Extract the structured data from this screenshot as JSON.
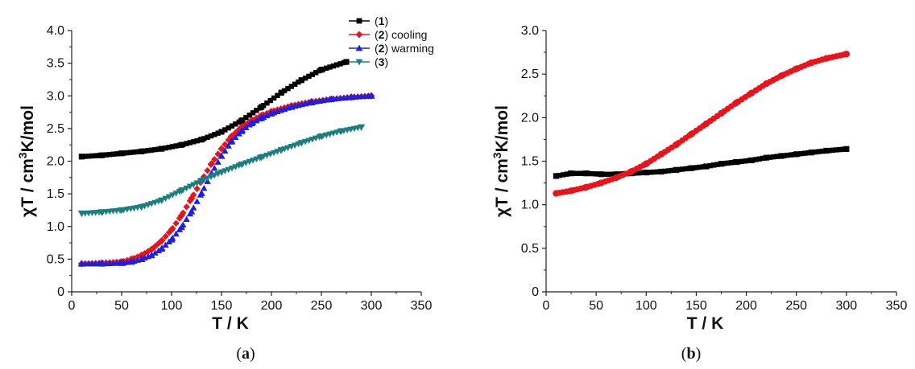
{
  "panel_labels": [
    {
      "open": "(",
      "letter": "a",
      "close": ")"
    },
    {
      "open": "(",
      "letter": "b",
      "close": ")"
    }
  ],
  "chart_data": [
    {
      "type": "scatter",
      "title": "",
      "xlabel": "T / K",
      "ylabel_prefix": "χT / cm",
      "ylabel_sup": "3",
      "ylabel_suffix": "K/mol",
      "xlim": [
        0,
        350
      ],
      "ylim": [
        0,
        4.0
      ],
      "xticks": [
        "0",
        "50",
        "100",
        "150",
        "200",
        "250",
        "300",
        "350"
      ],
      "yticks": [
        "0",
        "0.5",
        "1.0",
        "1.5",
        "2.0",
        "2.5",
        "3.0",
        "3.5",
        "4.0"
      ],
      "legend_position": "top-right",
      "grid": false,
      "series": [
        {
          "name_num": "1",
          "name_text": "",
          "color": "#000000",
          "marker": "square",
          "x": [
            10,
            30,
            50,
            70,
            90,
            110,
            130,
            150,
            170,
            190,
            210,
            230,
            250,
            275
          ],
          "y": [
            2.07,
            2.09,
            2.12,
            2.15,
            2.19,
            2.25,
            2.33,
            2.45,
            2.62,
            2.83,
            3.05,
            3.24,
            3.4,
            3.52
          ]
        },
        {
          "name_num": "2",
          "name_text": " cooling",
          "color": "#e8141b",
          "marker": "diamond",
          "x": [
            10,
            30,
            50,
            60,
            70,
            80,
            90,
            100,
            110,
            120,
            130,
            140,
            150,
            160,
            170,
            180,
            190,
            200,
            220,
            240,
            260,
            280,
            300
          ],
          "y": [
            0.43,
            0.44,
            0.46,
            0.5,
            0.56,
            0.65,
            0.78,
            0.95,
            1.17,
            1.43,
            1.7,
            1.96,
            2.19,
            2.38,
            2.52,
            2.62,
            2.7,
            2.76,
            2.85,
            2.91,
            2.95,
            2.98,
            3.0
          ]
        },
        {
          "name_num": "2",
          "name_text": " warming",
          "color": "#1f1fe0",
          "marker": "triangle-up",
          "x": [
            10,
            30,
            50,
            60,
            70,
            80,
            90,
            100,
            110,
            120,
            130,
            140,
            150,
            160,
            170,
            180,
            190,
            200,
            220,
            240,
            260,
            280,
            300
          ],
          "y": [
            0.43,
            0.43,
            0.44,
            0.46,
            0.5,
            0.56,
            0.66,
            0.8,
            0.99,
            1.23,
            1.51,
            1.81,
            2.08,
            2.3,
            2.46,
            2.58,
            2.66,
            2.73,
            2.83,
            2.9,
            2.95,
            2.98,
            3.0
          ]
        },
        {
          "name_num": "3",
          "name_text": "",
          "color": "#1b7f7f",
          "marker": "triangle-down",
          "x": [
            10,
            30,
            50,
            70,
            90,
            110,
            130,
            150,
            170,
            190,
            210,
            230,
            250,
            270,
            290
          ],
          "y": [
            1.2,
            1.22,
            1.25,
            1.3,
            1.4,
            1.55,
            1.7,
            1.83,
            1.95,
            2.06,
            2.17,
            2.28,
            2.38,
            2.46,
            2.52
          ]
        }
      ]
    },
    {
      "type": "scatter",
      "title": "",
      "xlabel": "T / K",
      "ylabel_prefix": "χT / cm",
      "ylabel_sup": "3",
      "ylabel_suffix": "K/mol",
      "xlim": [
        0,
        350
      ],
      "ylim": [
        0,
        3.0
      ],
      "xticks": [
        "0",
        "50",
        "100",
        "150",
        "200",
        "250",
        "300",
        "350"
      ],
      "yticks": [
        "0",
        "0.5",
        "1.0",
        "1.5",
        "2.0",
        "2.5",
        "3.0"
      ],
      "grid": false,
      "series": [
        {
          "color": "#000000",
          "marker": "square",
          "x": [
            10,
            25,
            40,
            55,
            70,
            85,
            100,
            115,
            130,
            145,
            160,
            175,
            190,
            205,
            220,
            235,
            250,
            265,
            280,
            300
          ],
          "y": [
            1.33,
            1.36,
            1.36,
            1.35,
            1.35,
            1.36,
            1.37,
            1.38,
            1.4,
            1.42,
            1.44,
            1.47,
            1.49,
            1.51,
            1.54,
            1.56,
            1.58,
            1.6,
            1.62,
            1.64
          ]
        },
        {
          "color": "#e8141b",
          "marker": "circle",
          "x": [
            10,
            25,
            40,
            55,
            70,
            85,
            100,
            115,
            130,
            145,
            160,
            175,
            190,
            205,
            220,
            235,
            250,
            265,
            280,
            300
          ],
          "y": [
            1.13,
            1.16,
            1.2,
            1.25,
            1.31,
            1.38,
            1.47,
            1.58,
            1.69,
            1.81,
            1.93,
            2.05,
            2.17,
            2.28,
            2.39,
            2.48,
            2.56,
            2.63,
            2.68,
            2.73
          ]
        }
      ]
    }
  ]
}
